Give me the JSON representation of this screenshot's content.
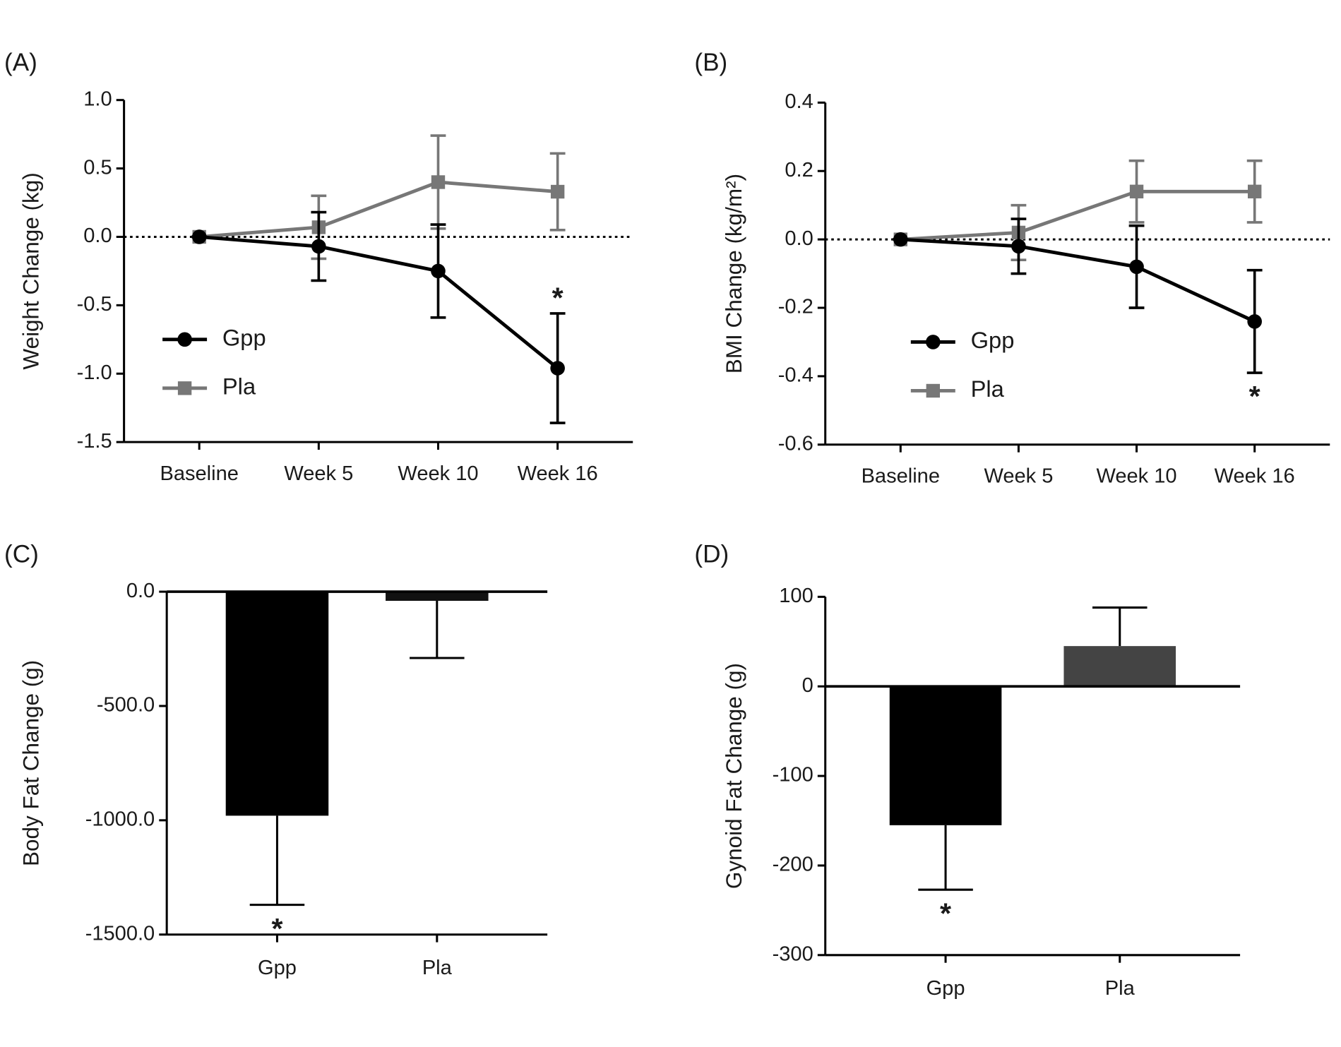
{
  "chart_data": [
    {
      "type": "line",
      "title": "(A)",
      "y_label": "Weight Change (kg)",
      "categories": [
        "Baseline",
        "Week 5",
        "Week 10",
        "Week 16"
      ],
      "series": [
        {
          "name": "Gpp",
          "color": "#000000",
          "marker": "circle",
          "values": [
            0,
            -0.07,
            -0.25,
            -0.96
          ],
          "errors": [
            0,
            0.25,
            0.34,
            0.4
          ]
        },
        {
          "name": "Pla",
          "color": "#777777",
          "marker": "square",
          "values": [
            0,
            0.07,
            0.4,
            0.33
          ],
          "errors": [
            0,
            0.23,
            0.34,
            0.28
          ]
        }
      ],
      "ylim": [
        -1.5,
        1.0
      ],
      "yticks": [
        -1.5,
        {
          "value": -1.0,
          "label": "-1.0"
        },
        -0.5,
        {
          "value": 0,
          "label": "0.0"
        },
        0.5,
        {
          "value": 1.0,
          "label": "1.0"
        }
      ],
      "reference_line": 0,
      "legend": "lower left",
      "annotations": [
        {
          "text": "*",
          "series": 0,
          "category": 3,
          "position": "above"
        }
      ]
    },
    {
      "type": "line",
      "title": "(B)",
      "y_label": "BMI Change (kg/m²)",
      "categories": [
        "Baseline",
        "Week 5",
        "Week 10",
        "Week 16"
      ],
      "series": [
        {
          "name": "Gpp",
          "color": "#000000",
          "marker": "circle",
          "values": [
            0,
            -0.02,
            -0.08,
            -0.24
          ],
          "errors": [
            0,
            0.08,
            0.12,
            0.15
          ]
        },
        {
          "name": "Pla",
          "color": "#777777",
          "marker": "square",
          "values": [
            0,
            0.02,
            0.14,
            0.14
          ],
          "errors": [
            0,
            0.08,
            0.09,
            0.09
          ]
        }
      ],
      "ylim": [
        -0.6,
        0.4
      ],
      "yticks": [
        -0.6,
        -0.4,
        -0.2,
        {
          "value": 0,
          "label": "0.0"
        },
        0.2,
        0.4
      ],
      "reference_line": 0,
      "legend": "lower left",
      "annotations": [
        {
          "text": "*",
          "series": 0,
          "category": 3,
          "position": "below"
        }
      ]
    },
    {
      "type": "bar",
      "title": "(C)",
      "y_label": "Body Fat Change (g)",
      "categories": [
        "Gpp",
        "Pla"
      ],
      "values": [
        -980,
        -40
      ],
      "errors": [
        390,
        250
      ],
      "colors": [
        "#000000",
        "#111111"
      ],
      "ylim": [
        -1500,
        0
      ],
      "yticks": [
        {
          "value": -1500,
          "label": "-1500.0"
        },
        {
          "value": -1000,
          "label": "-1000.0"
        },
        {
          "value": -500,
          "label": "-500.0"
        },
        {
          "value": 0,
          "label": "0.0"
        }
      ],
      "reference_line": 0,
      "annotations": [
        {
          "text": "*",
          "category": 0,
          "position": "below"
        }
      ]
    },
    {
      "type": "bar",
      "title": "(D)",
      "y_label": "Gynoid Fat Change (g)",
      "categories": [
        "Gpp",
        "Pla"
      ],
      "values": [
        -155,
        45
      ],
      "errors": [
        72,
        43
      ],
      "colors": [
        "#000000",
        "#444444"
      ],
      "ylim": [
        -300,
        100
      ],
      "yticks": [
        -300,
        -200,
        -100,
        0,
        100
      ],
      "reference_line": 0,
      "annotations": [
        {
          "text": "*",
          "category": 0,
          "position": "below"
        }
      ]
    }
  ]
}
